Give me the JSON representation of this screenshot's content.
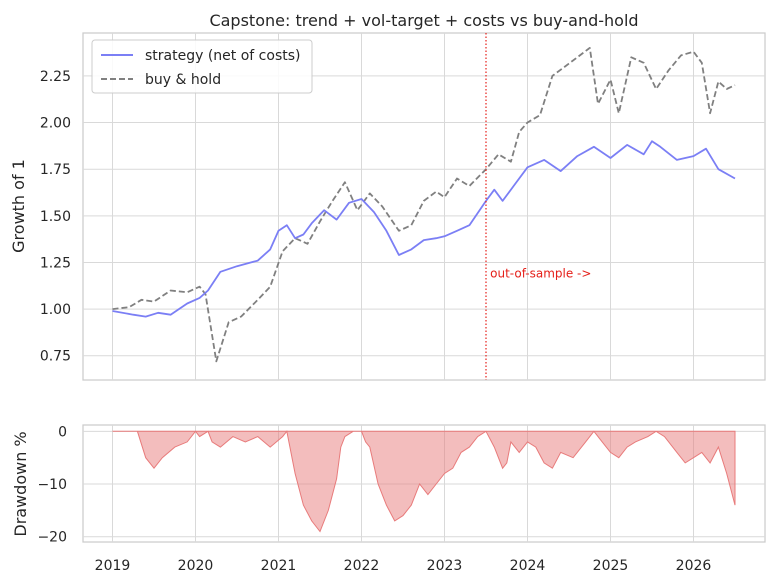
{
  "chart_data": [
    {
      "type": "line",
      "title": "Capstone: trend + vol-target + costs vs buy-and-hold",
      "xlabel": "",
      "ylabel": "Growth of 1",
      "ylim": [
        0.62,
        2.48
      ],
      "x_ticks": [
        "2019",
        "2020",
        "2021",
        "2022",
        "2023",
        "2024",
        "2025",
        "2026"
      ],
      "y_ticks": [
        "0.75",
        "1.00",
        "1.25",
        "1.50",
        "1.75",
        "2.00",
        "2.25"
      ],
      "grid": true,
      "legend_position": "top-left",
      "annotation": {
        "text": "out-of-sample ->",
        "x": 2023.55,
        "y": 1.17,
        "color": "#e5201a"
      },
      "split_line": {
        "x": 2023.5,
        "style": "dotted",
        "color": "#e5201a"
      },
      "series": [
        {
          "name": "strategy (net of costs)",
          "color": "#7b7ff5",
          "style": "solid",
          "x": [
            2019.0,
            2019.25,
            2019.4,
            2019.55,
            2019.7,
            2019.9,
            2020.05,
            2020.15,
            2020.3,
            2020.5,
            2020.75,
            2020.9,
            2021.0,
            2021.1,
            2021.2,
            2021.3,
            2021.4,
            2021.55,
            2021.7,
            2021.85,
            2022.0,
            2022.15,
            2022.3,
            2022.45,
            2022.6,
            2022.75,
            2022.9,
            2023.0,
            2023.15,
            2023.3,
            2023.5,
            2023.6,
            2023.7,
            2023.85,
            2024.0,
            2024.2,
            2024.4,
            2024.6,
            2024.8,
            2025.0,
            2025.2,
            2025.4,
            2025.5,
            2025.6,
            2025.8,
            2026.0,
            2026.15,
            2026.3,
            2026.5
          ],
          "values": [
            0.99,
            0.97,
            0.96,
            0.98,
            0.97,
            1.03,
            1.06,
            1.1,
            1.2,
            1.23,
            1.26,
            1.32,
            1.42,
            1.45,
            1.38,
            1.4,
            1.46,
            1.53,
            1.48,
            1.57,
            1.59,
            1.52,
            1.42,
            1.29,
            1.32,
            1.37,
            1.38,
            1.39,
            1.42,
            1.45,
            1.58,
            1.64,
            1.58,
            1.67,
            1.76,
            1.8,
            1.74,
            1.82,
            1.87,
            1.81,
            1.88,
            1.83,
            1.9,
            1.87,
            1.8,
            1.82,
            1.86,
            1.75,
            1.7
          ]
        },
        {
          "name": "buy & hold",
          "color": "#808080",
          "style": "dashed",
          "x": [
            2019.0,
            2019.2,
            2019.35,
            2019.5,
            2019.7,
            2019.9,
            2020.05,
            2020.12,
            2020.25,
            2020.4,
            2020.55,
            2020.75,
            2020.9,
            2021.05,
            2021.2,
            2021.35,
            2021.5,
            2021.65,
            2021.8,
            2021.95,
            2022.1,
            2022.25,
            2022.45,
            2022.6,
            2022.75,
            2022.9,
            2023.0,
            2023.15,
            2023.3,
            2023.5,
            2023.65,
            2023.8,
            2023.9,
            2024.0,
            2024.15,
            2024.3,
            2024.45,
            2024.6,
            2024.75,
            2024.85,
            2025.0,
            2025.1,
            2025.25,
            2025.4,
            2025.55,
            2025.7,
            2025.85,
            2026.0,
            2026.1,
            2026.2,
            2026.3,
            2026.4,
            2026.5
          ],
          "values": [
            1.0,
            1.01,
            1.05,
            1.04,
            1.1,
            1.09,
            1.12,
            1.08,
            0.72,
            0.93,
            0.96,
            1.05,
            1.12,
            1.31,
            1.38,
            1.35,
            1.47,
            1.58,
            1.68,
            1.53,
            1.62,
            1.55,
            1.42,
            1.45,
            1.58,
            1.63,
            1.6,
            1.7,
            1.66,
            1.75,
            1.83,
            1.79,
            1.95,
            2.0,
            2.04,
            2.25,
            2.3,
            2.35,
            2.4,
            2.1,
            2.23,
            2.05,
            2.35,
            2.32,
            2.18,
            2.28,
            2.36,
            2.38,
            2.32,
            2.05,
            2.22,
            2.18,
            2.2
          ]
        }
      ]
    },
    {
      "type": "area",
      "title": "",
      "xlabel": "",
      "ylabel": "Drawdown %",
      "ylim": [
        -21,
        1.2
      ],
      "x_ticks": [
        "2019",
        "2020",
        "2021",
        "2022",
        "2023",
        "2024",
        "2025",
        "2026"
      ],
      "y_ticks": [
        "0",
        "−10",
        "−20"
      ],
      "grid": true,
      "series": [
        {
          "name": "",
          "color": "#e87b7b",
          "x": [
            2019.0,
            2019.3,
            2019.4,
            2019.5,
            2019.6,
            2019.75,
            2019.9,
            2020.0,
            2020.05,
            2020.15,
            2020.2,
            2020.3,
            2020.45,
            2020.6,
            2020.75,
            2020.9,
            2021.05,
            2021.1,
            2021.2,
            2021.3,
            2021.4,
            2021.5,
            2021.6,
            2021.7,
            2021.75,
            2021.8,
            2021.9,
            2022.0,
            2022.05,
            2022.1,
            2022.2,
            2022.3,
            2022.4,
            2022.5,
            2022.6,
            2022.7,
            2022.8,
            2022.9,
            2023.0,
            2023.1,
            2023.2,
            2023.3,
            2023.4,
            2023.5,
            2023.6,
            2023.7,
            2023.75,
            2023.8,
            2023.9,
            2024.0,
            2024.1,
            2024.2,
            2024.3,
            2024.4,
            2024.55,
            2024.7,
            2024.8,
            2024.9,
            2025.0,
            2025.1,
            2025.2,
            2025.3,
            2025.45,
            2025.55,
            2025.65,
            2025.8,
            2025.9,
            2026.0,
            2026.1,
            2026.2,
            2026.3,
            2026.4,
            2026.5
          ],
          "values": [
            0,
            0,
            -5,
            -7,
            -5,
            -3,
            -2,
            0,
            -1,
            0,
            -2,
            -3,
            -1,
            -2,
            -1,
            -3,
            -1,
            0,
            -8,
            -14,
            -17,
            -19,
            -15,
            -9,
            -3,
            -1,
            0,
            0,
            -2,
            -3,
            -10,
            -14,
            -17,
            -16,
            -14,
            -10,
            -12,
            -10,
            -8,
            -7,
            -4,
            -3,
            -1,
            0,
            -3,
            -7,
            -6,
            -2,
            -4,
            -2,
            -3,
            -6,
            -7,
            -4,
            -5,
            -2,
            0,
            -2,
            -4,
            -5,
            -3,
            -2,
            -1,
            0,
            -1,
            -4,
            -6,
            -5,
            -4,
            -6,
            -3,
            -8,
            -14
          ]
        }
      ]
    }
  ]
}
